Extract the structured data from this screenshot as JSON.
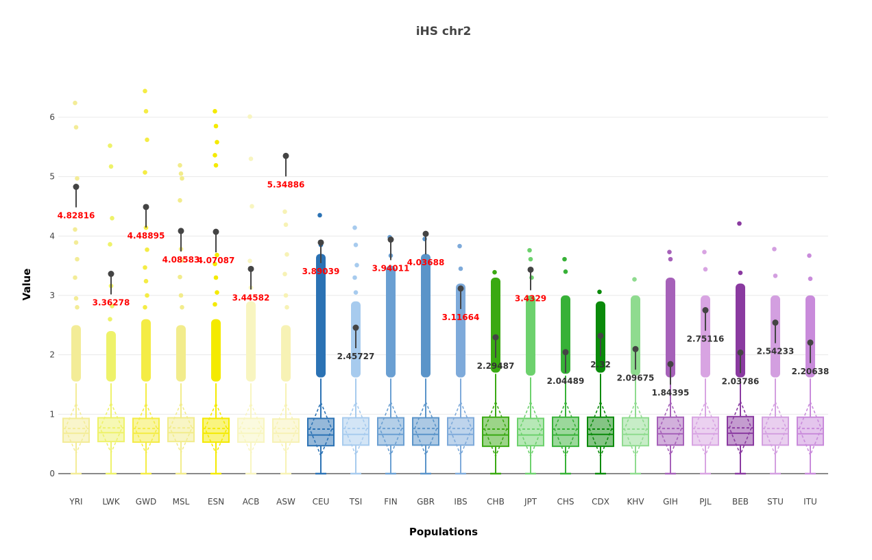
{
  "chart_data": {
    "type": "box",
    "title": "iHS chr2",
    "xlabel": "Populations",
    "ylabel": "Value",
    "ylim": [
      -0.1,
      6.6
    ],
    "yticks": [
      0,
      1,
      2,
      3,
      4,
      5,
      6
    ],
    "grid": true,
    "annotation_threshold_color": {
      "above": "#ff0000",
      "below": "#333333"
    },
    "series": [
      {
        "name": "YRI",
        "color": "#f3ec97",
        "q1": 0.53,
        "median": 0.68,
        "q3": 0.93,
        "mean": 0.76,
        "sd": 0.42,
        "whisker_low": 0,
        "whisker_high": 1.52,
        "dense_outliers": [
          1.55,
          2.5
        ],
        "outliers": [
          6.24,
          5.83,
          4.97,
          4.11,
          3.89,
          3.61,
          3.3,
          2.95,
          2.8
        ],
        "annotation": 4.82816
      },
      {
        "name": "LWK",
        "color": "#eef26a",
        "q1": 0.54,
        "median": 0.69,
        "q3": 0.94,
        "mean": 0.77,
        "sd": 0.42,
        "whisker_low": 0,
        "whisker_high": 1.52,
        "dense_outliers": [
          1.55,
          2.4
        ],
        "outliers": [
          5.52,
          5.17,
          4.3,
          3.86,
          3.16,
          2.82,
          2.6
        ],
        "annotation": 3.36278
      },
      {
        "name": "GWD",
        "color": "#f4ec45",
        "q1": 0.53,
        "median": 0.68,
        "q3": 0.93,
        "mean": 0.76,
        "sd": 0.42,
        "whisker_low": 0,
        "whisker_high": 1.52,
        "dense_outliers": [
          1.55,
          2.6
        ],
        "outliers": [
          6.44,
          6.1,
          5.62,
          5.07,
          4.14,
          3.77,
          3.47,
          3.24,
          3.0,
          2.8
        ],
        "annotation": 4.48895
      },
      {
        "name": "MSL",
        "color": "#f2ec8c",
        "q1": 0.54,
        "median": 0.69,
        "q3": 0.94,
        "mean": 0.77,
        "sd": 0.42,
        "whisker_low": 0,
        "whisker_high": 1.52,
        "dense_outliers": [
          1.55,
          2.5
        ],
        "outliers": [
          5.19,
          5.05,
          4.97,
          4.6,
          3.78,
          3.59,
          3.31,
          3.0,
          2.8
        ],
        "annotation": 4.08583
      },
      {
        "name": "ESN",
        "color": "#f4ea00",
        "q1": 0.53,
        "median": 0.68,
        "q3": 0.93,
        "mean": 0.76,
        "sd": 0.42,
        "whisker_low": 0,
        "whisker_high": 1.52,
        "dense_outliers": [
          1.55,
          2.6
        ],
        "outliers": [
          6.1,
          5.85,
          5.58,
          5.36,
          5.19,
          3.68,
          3.53,
          3.3,
          3.05,
          2.85
        ],
        "annotation": 4.07087
      },
      {
        "name": "ACB",
        "color": "#f8f5c0",
        "q1": 0.53,
        "median": 0.68,
        "q3": 0.93,
        "mean": 0.76,
        "sd": 0.42,
        "whisker_low": 0,
        "whisker_high": 1.52,
        "dense_outliers": [
          1.55,
          2.9
        ],
        "outliers": [
          6.01,
          5.3,
          4.5,
          3.58,
          3.13
        ],
        "annotation": 3.44582
      },
      {
        "name": "ASW",
        "color": "#f7f2b5",
        "q1": 0.53,
        "median": 0.68,
        "q3": 0.92,
        "mean": 0.76,
        "sd": 0.42,
        "whisker_low": 0,
        "whisker_high": 1.52,
        "dense_outliers": [
          1.55,
          2.5
        ],
        "outliers": [
          4.41,
          4.19,
          3.69,
          3.36,
          3.0,
          2.8
        ],
        "annotation": 5.34886
      },
      {
        "name": "CEU",
        "color": "#2b72b4",
        "q1": 0.47,
        "median": 0.65,
        "q3": 0.93,
        "mean": 0.75,
        "sd": 0.45,
        "whisker_low": 0,
        "whisker_high": 1.6,
        "dense_outliers": [
          1.62,
          3.7
        ],
        "outliers": [
          4.35,
          3.85
        ],
        "annotation": 3.89039
      },
      {
        "name": "TSI",
        "color": "#a7cbee",
        "q1": 0.48,
        "median": 0.66,
        "q3": 0.94,
        "mean": 0.76,
        "sd": 0.45,
        "whisker_low": 0,
        "whisker_high": 1.6,
        "dense_outliers": [
          1.62,
          2.9
        ],
        "outliers": [
          4.14,
          3.85,
          3.51,
          3.3,
          3.05
        ],
        "annotation": 2.45727
      },
      {
        "name": "FIN",
        "color": "#6a9fd2",
        "q1": 0.48,
        "median": 0.66,
        "q3": 0.94,
        "mean": 0.76,
        "sd": 0.45,
        "whisker_low": 0,
        "whisker_high": 1.6,
        "dense_outliers": [
          1.62,
          3.5
        ],
        "outliers": [
          3.98,
          3.67
        ],
        "annotation": 3.94011
      },
      {
        "name": "GBR",
        "color": "#5a94c9",
        "q1": 0.48,
        "median": 0.66,
        "q3": 0.94,
        "mean": 0.76,
        "sd": 0.45,
        "whisker_low": 0,
        "whisker_high": 1.6,
        "dense_outliers": [
          1.62,
          3.7
        ],
        "outliers": [
          3.95
        ],
        "annotation": 4.03688
      },
      {
        "name": "IBS",
        "color": "#7eaada",
        "q1": 0.48,
        "median": 0.66,
        "q3": 0.94,
        "mean": 0.76,
        "sd": 0.45,
        "whisker_low": 0,
        "whisker_high": 1.6,
        "dense_outliers": [
          1.62,
          3.2
        ],
        "outliers": [
          3.83,
          3.45
        ],
        "annotation": 3.11664
      },
      {
        "name": "CHB",
        "color": "#3aa912",
        "q1": 0.46,
        "median": 0.65,
        "q3": 0.95,
        "mean": 0.75,
        "sd": 0.46,
        "whisker_low": 0,
        "whisker_high": 1.68,
        "dense_outliers": [
          1.7,
          3.3
        ],
        "outliers": [
          3.39
        ],
        "annotation": 2.29487
      },
      {
        "name": "JPT",
        "color": "#6dd16d",
        "q1": 0.47,
        "median": 0.65,
        "q3": 0.93,
        "mean": 0.75,
        "sd": 0.46,
        "whisker_low": 0,
        "whisker_high": 1.62,
        "dense_outliers": [
          1.65,
          3.0
        ],
        "outliers": [
          3.76,
          3.61,
          3.3
        ],
        "annotation": 3.4329
      },
      {
        "name": "CHS",
        "color": "#37b137",
        "q1": 0.46,
        "median": 0.65,
        "q3": 0.95,
        "mean": 0.75,
        "sd": 0.46,
        "whisker_low": 0,
        "whisker_high": 1.65,
        "dense_outliers": [
          1.68,
          3.0
        ],
        "outliers": [
          3.61,
          3.4
        ],
        "annotation": 2.04489
      },
      {
        "name": "CDX",
        "color": "#0a8a0a",
        "q1": 0.46,
        "median": 0.66,
        "q3": 0.95,
        "mean": 0.75,
        "sd": 0.46,
        "whisker_low": 0,
        "whisker_high": 1.68,
        "dense_outliers": [
          1.7,
          2.9
        ],
        "outliers": [
          3.06
        ],
        "annotation": 2.32
      },
      {
        "name": "KHV",
        "color": "#8fdb8f",
        "q1": 0.47,
        "median": 0.66,
        "q3": 0.94,
        "mean": 0.75,
        "sd": 0.46,
        "whisker_low": 0,
        "whisker_high": 1.62,
        "dense_outliers": [
          1.65,
          3.0
        ],
        "outliers": [
          3.27
        ],
        "annotation": 2.09675
      },
      {
        "name": "GIH",
        "color": "#a661b9",
        "q1": 0.48,
        "median": 0.67,
        "q3": 0.95,
        "mean": 0.76,
        "sd": 0.45,
        "whisker_low": 0,
        "whisker_high": 1.6,
        "dense_outliers": [
          1.62,
          3.3
        ],
        "outliers": [
          3.73,
          3.61
        ],
        "annotation": 1.84395
      },
      {
        "name": "PJL",
        "color": "#d8a4e2",
        "q1": 0.48,
        "median": 0.67,
        "q3": 0.95,
        "mean": 0.76,
        "sd": 0.45,
        "whisker_low": 0,
        "whisker_high": 1.6,
        "dense_outliers": [
          1.62,
          3.0
        ],
        "outliers": [
          3.73,
          3.44
        ],
        "annotation": 2.75116
      },
      {
        "name": "BEB",
        "color": "#8a3aa0",
        "q1": 0.48,
        "median": 0.68,
        "q3": 0.96,
        "mean": 0.77,
        "sd": 0.45,
        "whisker_low": 0,
        "whisker_high": 1.6,
        "dense_outliers": [
          1.62,
          3.2
        ],
        "outliers": [
          4.21,
          3.38
        ],
        "annotation": 2.03786
      },
      {
        "name": "STU",
        "color": "#d39fe0",
        "q1": 0.48,
        "median": 0.67,
        "q3": 0.95,
        "mean": 0.76,
        "sd": 0.45,
        "whisker_low": 0,
        "whisker_high": 1.6,
        "dense_outliers": [
          1.62,
          3.0
        ],
        "outliers": [
          3.78,
          3.33
        ],
        "annotation": 2.54233
      },
      {
        "name": "ITU",
        "color": "#c98bdb",
        "q1": 0.48,
        "median": 0.67,
        "q3": 0.95,
        "mean": 0.76,
        "sd": 0.45,
        "whisker_low": 0,
        "whisker_high": 1.6,
        "dense_outliers": [
          1.62,
          3.0
        ],
        "outliers": [
          3.67,
          3.28
        ],
        "annotation": 2.20638
      }
    ]
  }
}
